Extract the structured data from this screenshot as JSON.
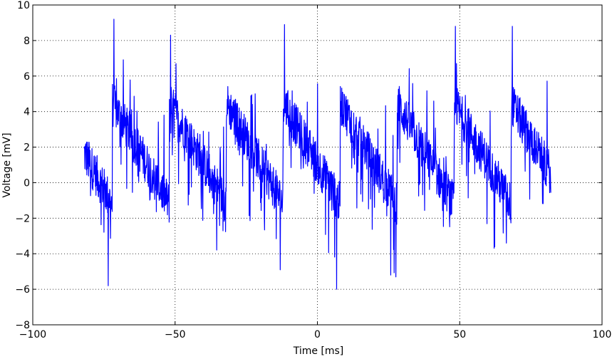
{
  "chart_data": {
    "type": "line",
    "title": "",
    "xlabel": "Time [ms]",
    "ylabel": "Voltage [mV]",
    "xlim": [
      -100,
      100
    ],
    "ylim": [
      -8,
      10
    ],
    "xticks": [
      -100,
      -50,
      0,
      50,
      100
    ],
    "xtick_labels": [
      "−100",
      "−50",
      "0",
      "50",
      "100"
    ],
    "yticks": [
      -8,
      -6,
      -4,
      -2,
      0,
      2,
      4,
      6,
      8,
      10
    ],
    "ytick_labels": [
      "−8",
      "−6",
      "−4",
      "−2",
      "0",
      "2",
      "4",
      "6",
      "8",
      "10"
    ],
    "grid": true,
    "grid_style": "dotted",
    "legend": "none",
    "series": [
      {
        "color": "#0000ff",
        "x_range": [
          -82,
          82
        ],
        "sample_count": 1640,
        "period_ms": 20,
        "reset_times_ms": [
          -72,
          -52,
          -32,
          -12,
          8,
          28,
          48,
          68
        ],
        "ramp_start_level_mV": 4.5,
        "ramp_end_level_mV": -1.2,
        "noise_amplitude_mV": 1.5,
        "max_value_mV": 9.2,
        "min_value_mV": -6.0,
        "notable_peaks": [
          {
            "x": -71.5,
            "y": 9.2
          },
          {
            "x": -51.6,
            "y": 8.3
          },
          {
            "x": -11.6,
            "y": 8.9
          },
          {
            "x": 48.5,
            "y": 8.8
          },
          {
            "x": 68.5,
            "y": 8.8
          }
        ],
        "notable_troughs": [
          {
            "x": -73.5,
            "y": -5.8
          },
          {
            "x": 6.8,
            "y": -6.0
          },
          {
            "x": 25.8,
            "y": -5.2
          }
        ]
      }
    ]
  }
}
